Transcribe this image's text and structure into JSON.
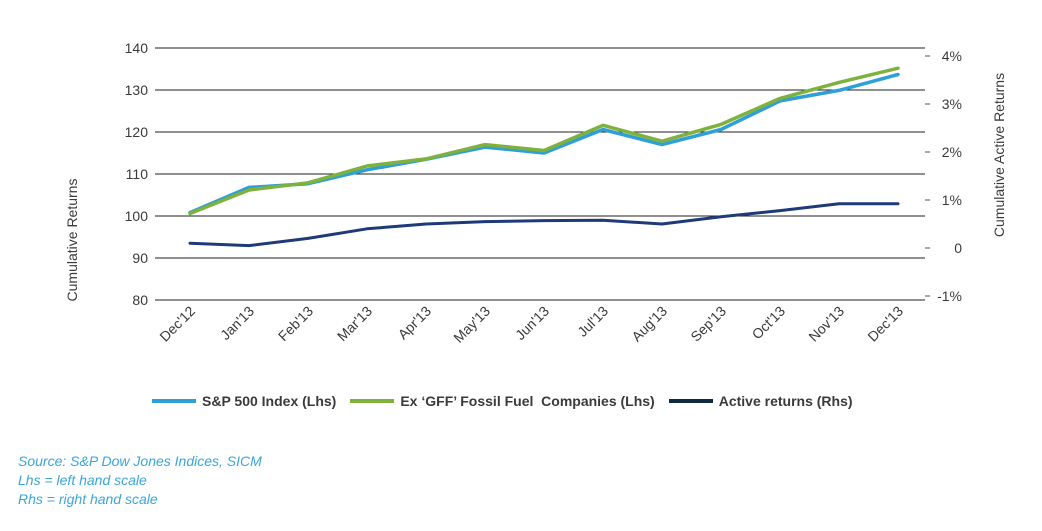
{
  "chart_data": {
    "type": "line",
    "categories": [
      "Dec'12",
      "Jan'13",
      "Feb'13",
      "Mar'13",
      "Apr'13",
      "May'13",
      "Jun'13",
      "Jul'13",
      "Aug'13",
      "Sep'13",
      "Oct'13",
      "Nov'13",
      "Dec'13"
    ],
    "ylabel": "Cumulative Returns",
    "ylabel_right": "Cumulative Active Returns",
    "ylim": [
      80,
      140
    ],
    "yticks": [
      "80",
      "90",
      "100",
      "110",
      "120",
      "130",
      "140"
    ],
    "ylim_right": [
      -1,
      4
    ],
    "yticks_right": [
      "-1%",
      "0",
      "1%",
      "2%",
      "3%",
      "4%"
    ],
    "grid": true,
    "legend_position": "bottom",
    "series": [
      {
        "name": "S&P 500 Index (Lhs)",
        "axis": "left",
        "color": "#2e9fd8",
        "values": [
          100.8,
          106.8,
          107.7,
          111.0,
          113.5,
          116.4,
          115.0,
          120.6,
          117.0,
          120.6,
          127.4,
          129.9,
          133.7
        ]
      },
      {
        "name": "Ex ‘GFF’ Fossil Fuel  Companies (Lhs)",
        "axis": "left",
        "color": "#7fb13d",
        "values": [
          100.6,
          106.2,
          107.9,
          111.9,
          113.6,
          117.0,
          115.6,
          121.6,
          117.8,
          121.8,
          128.0,
          131.8,
          135.2
        ]
      },
      {
        "name": "Active returns (Rhs)",
        "axis": "right",
        "color": "#1f3a78",
        "legend_color": "#0f2b3d",
        "values": [
          0.1,
          0.05,
          0.2,
          0.4,
          0.5,
          0.55,
          0.57,
          0.58,
          0.5,
          0.65,
          0.78,
          0.92,
          0.92
        ]
      }
    ]
  },
  "footnotes": [
    "Source: S&P Dow Jones Indices, SICM",
    "Lhs = left hand scale",
    "Rhs = right hand scale"
  ]
}
